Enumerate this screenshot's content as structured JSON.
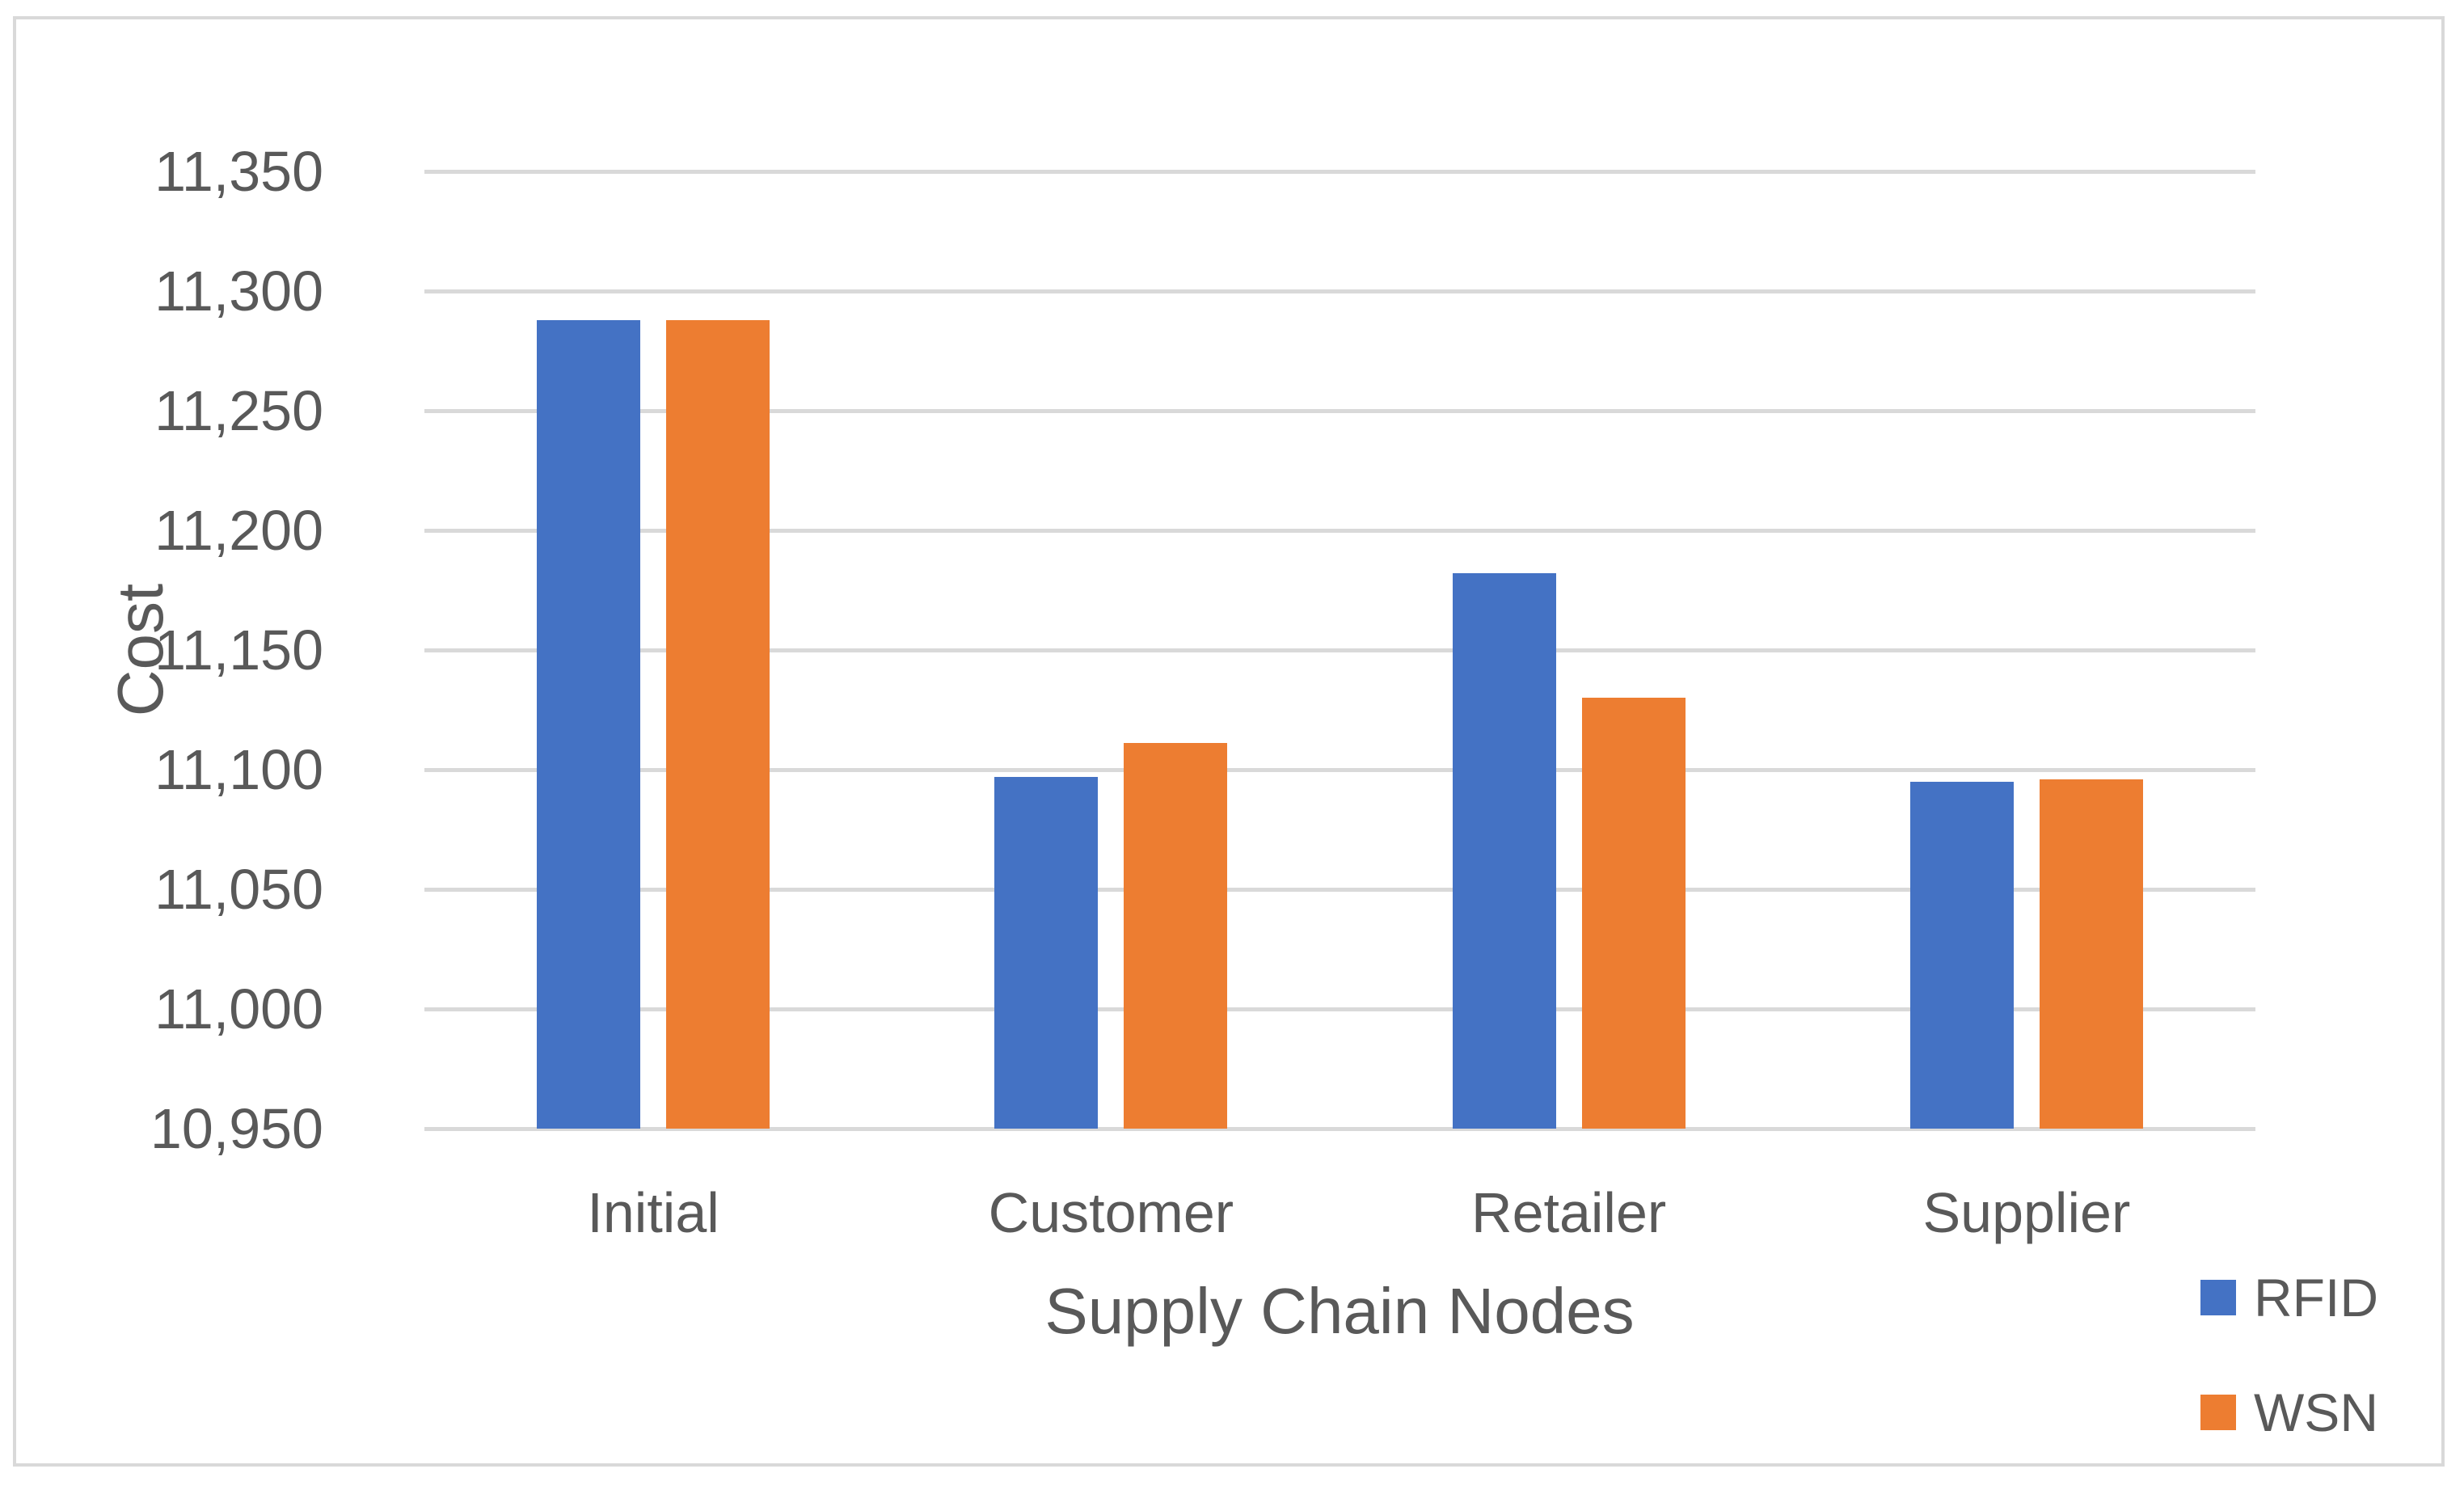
{
  "chart_data": {
    "type": "bar",
    "categories": [
      "Initial",
      "Customer",
      "Retailer",
      "Supplier"
    ],
    "series": [
      {
        "name": "RFID",
        "color": "#4472c4",
        "values": [
          11288,
          11097,
          11182,
          11095
        ]
      },
      {
        "name": "WSN",
        "color": "#ed7d31",
        "values": [
          11288,
          11111,
          11130,
          11096
        ]
      }
    ],
    "xlabel": "Supply Chain Nodes",
    "ylabel": "Cost",
    "ylim": [
      10950,
      11350
    ],
    "ytick_step": 50,
    "ytick_labels": [
      "10,950",
      "11,000",
      "11,050",
      "11,100",
      "11,150",
      "11,200",
      "11,250",
      "11,300",
      "11,350"
    ],
    "grid": true,
    "legend_position": "bottom-right",
    "colors": {
      "text": "#595959",
      "gridline": "#d9d9d9",
      "axis_line": "#d9d9d9",
      "frame_border": "#d9d9d9",
      "background": "#ffffff"
    }
  }
}
